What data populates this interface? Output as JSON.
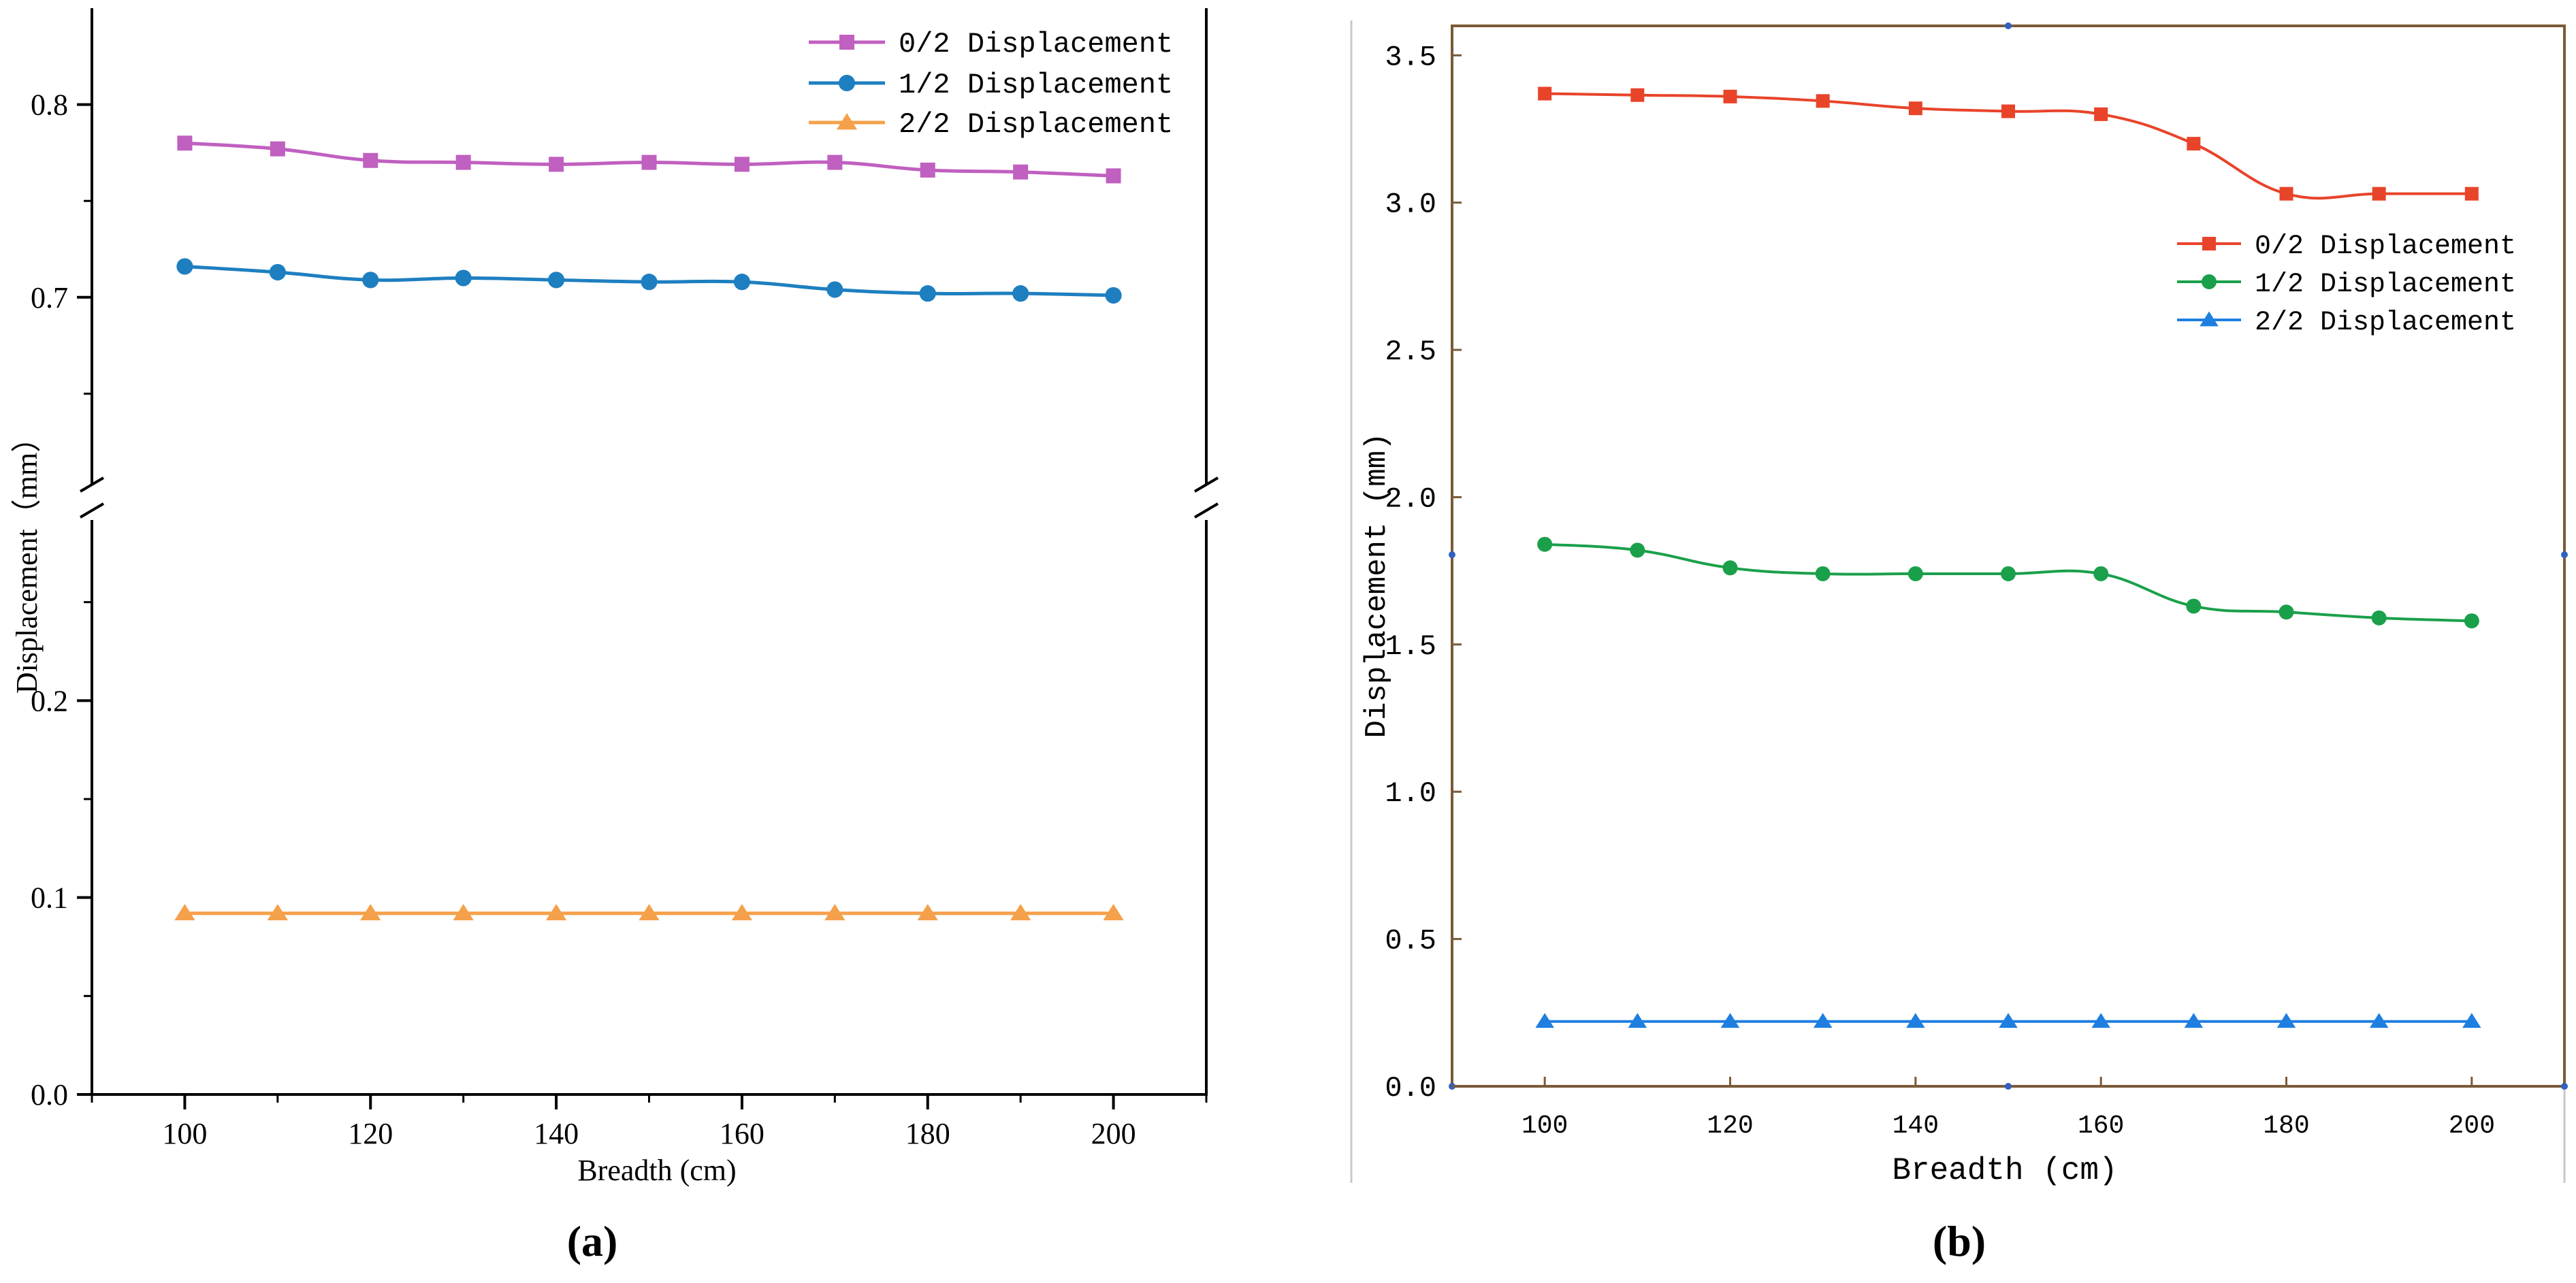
{
  "chart_data": [
    {
      "panel_label": "(a)",
      "type": "line",
      "xlabel": "Breadth (cm)",
      "ylabel": "Displacement（mm）",
      "xlim": [
        90,
        210
      ],
      "xticks": [
        100,
        120,
        140,
        160,
        180,
        200
      ],
      "ylim_lower": [
        0.0,
        0.3
      ],
      "ylim_upper": [
        0.6,
        0.85
      ],
      "yticks": [
        0.0,
        0.1,
        0.2,
        0.7,
        0.8
      ],
      "ytick_labels": [
        "0.0",
        "0.1",
        "0.2",
        "0.7",
        "0.8"
      ],
      "axis_break": true,
      "legend_position": "top-right",
      "x": [
        100,
        110,
        120,
        130,
        140,
        150,
        160,
        170,
        180,
        190,
        200
      ],
      "series": [
        {
          "name": "0/2 Displacement",
          "color": "#c060c0",
          "marker": "square",
          "values": [
            0.78,
            0.777,
            0.771,
            0.77,
            0.769,
            0.77,
            0.769,
            0.77,
            0.766,
            0.765,
            0.763
          ]
        },
        {
          "name": "1/2 Displacement",
          "color": "#1e7fc0",
          "marker": "circle",
          "values": [
            0.716,
            0.713,
            0.709,
            0.71,
            0.709,
            0.708,
            0.708,
            0.704,
            0.702,
            0.702,
            0.701
          ]
        },
        {
          "name": "2/2 Displacement",
          "color": "#f5a04a",
          "marker": "triangle",
          "values": [
            0.092,
            0.092,
            0.092,
            0.092,
            0.092,
            0.092,
            0.092,
            0.092,
            0.092,
            0.092,
            0.092
          ]
        }
      ]
    },
    {
      "panel_label": "(b)",
      "type": "line",
      "xlabel": "Breadth (cm)",
      "ylabel": "Displacement (mm)",
      "xlim": [
        90,
        210
      ],
      "xticks": [
        100,
        120,
        140,
        160,
        180,
        200
      ],
      "ylim": [
        0.0,
        3.6
      ],
      "yticks": [
        0.0,
        0.5,
        1.0,
        1.5,
        2.0,
        2.5,
        3.0,
        3.5
      ],
      "ytick_labels": [
        "0.0",
        "0.5",
        "1.0",
        "1.5",
        "2.0",
        "2.5",
        "3.0",
        "3.5"
      ],
      "legend_position": "upper-right",
      "x": [
        100,
        110,
        120,
        130,
        140,
        150,
        160,
        170,
        180,
        190,
        200
      ],
      "series": [
        {
          "name": "0/2 Displacement",
          "color": "#e8442a",
          "marker": "square",
          "values": [
            3.37,
            3.365,
            3.36,
            3.345,
            3.32,
            3.31,
            3.3,
            3.2,
            3.03,
            3.03,
            3.03
          ]
        },
        {
          "name": "1/2 Displacement",
          "color": "#1aa04a",
          "marker": "circle",
          "values": [
            1.84,
            1.82,
            1.76,
            1.74,
            1.74,
            1.74,
            1.74,
            1.63,
            1.61,
            1.59,
            1.58
          ]
        },
        {
          "name": "2/2 Displacement",
          "color": "#1e7fe0",
          "marker": "triangle",
          "values": [
            0.22,
            0.22,
            0.22,
            0.22,
            0.22,
            0.22,
            0.22,
            0.22,
            0.22,
            0.22,
            0.22
          ]
        }
      ]
    }
  ]
}
